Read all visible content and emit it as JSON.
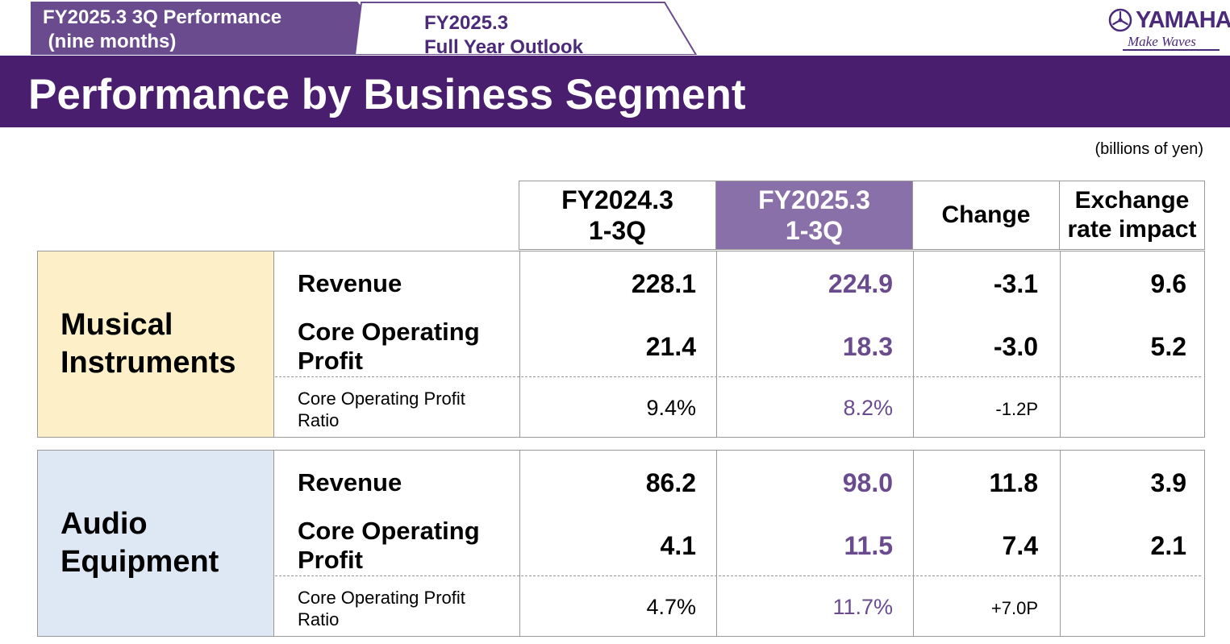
{
  "tabs": {
    "active_label": "FY2025.3 3Q Performance\n (nine months)",
    "inactive_label": "FY2025.3\nFull Year Outlook"
  },
  "logo": {
    "brand": "YAMAHA",
    "tagline": "Make Waves"
  },
  "title": "Performance by Business Segment",
  "unit_note": "(billions of yen)",
  "colors": {
    "purple_dark": "#4a1e6e",
    "purple_mid": "#6a4b8e",
    "purple_light": "#8a70a8",
    "mi_bg": "#fdf0c8",
    "ae_bg": "#dde8f4"
  },
  "columns": {
    "prev": "FY2024.3\n1-3Q",
    "curr": "FY2025.3\n1-3Q",
    "change": "Change",
    "fx": "Exchange\nrate impact"
  },
  "segments": [
    {
      "name": "Musical\nInstruments",
      "rows": [
        {
          "label": "Revenue",
          "prev": "228.1",
          "curr": "224.9",
          "change": "-3.1",
          "fx": "9.6"
        },
        {
          "label": "Core Operating\nProfit",
          "prev": "21.4",
          "curr": "18.3",
          "change": "-3.0",
          "fx": "5.2"
        },
        {
          "label": "Core Operating Profit\nRatio",
          "prev": "9.4%",
          "curr": "8.2%",
          "change": "-1.2P",
          "fx": ""
        }
      ]
    },
    {
      "name": "Audio\nEquipment",
      "rows": [
        {
          "label": "Revenue",
          "prev": "86.2",
          "curr": "98.0",
          "change": "11.8",
          "fx": "3.9"
        },
        {
          "label": "Core Operating\nProfit",
          "prev": "4.1",
          "curr": "11.5",
          "change": "7.4",
          "fx": "2.1"
        },
        {
          "label": "Core Operating Profit\nRatio",
          "prev": "4.7%",
          "curr": "11.7%",
          "change": "+7.0P",
          "fx": ""
        }
      ]
    }
  ]
}
